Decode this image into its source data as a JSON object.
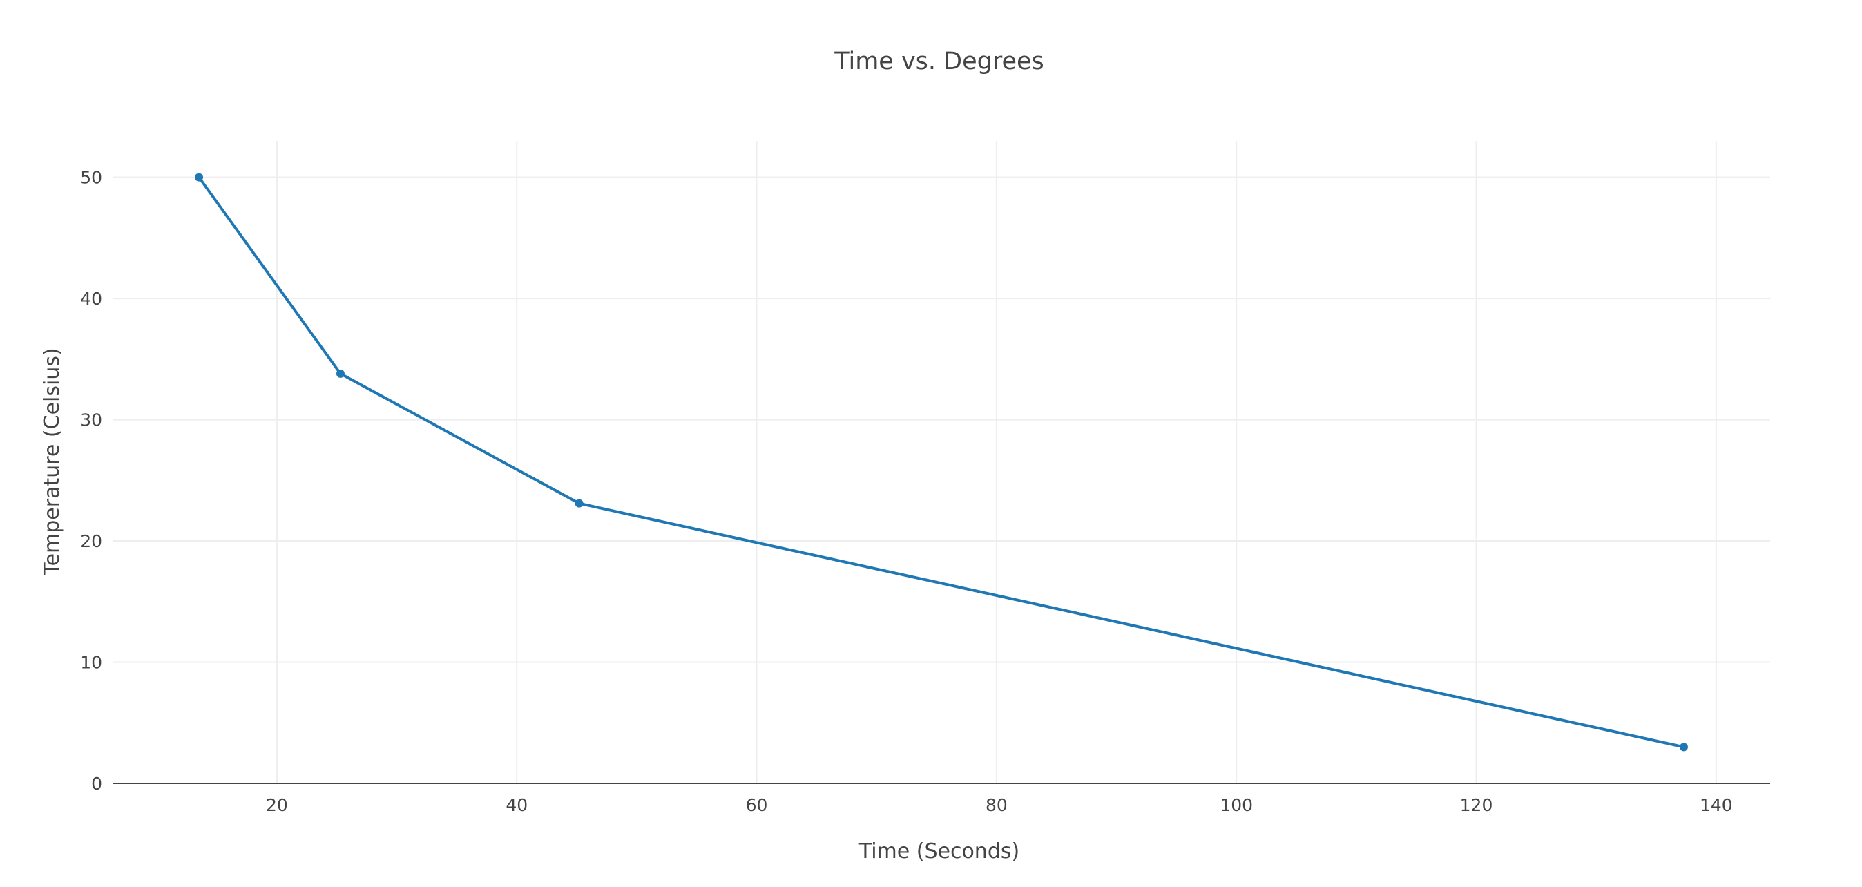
{
  "chart_data": {
    "type": "line",
    "title": "Time vs. Degrees",
    "xlabel": "Time (Seconds)",
    "ylabel": "Temperature (Celsius)",
    "xlim": [
      6.3,
      144.5
    ],
    "ylim": [
      0,
      53
    ],
    "x_ticks": [
      20,
      40,
      60,
      80,
      100,
      120,
      140
    ],
    "y_ticks": [
      0,
      10,
      20,
      30,
      40,
      50
    ],
    "grid": true,
    "legend": "none",
    "series": [
      {
        "x": [
          13.5,
          25.3,
          45.2,
          137.3
        ],
        "y": [
          50.0,
          33.8,
          23.1,
          3.0
        ],
        "color": "#1f77b4",
        "mode": "lines+markers"
      }
    ]
  }
}
